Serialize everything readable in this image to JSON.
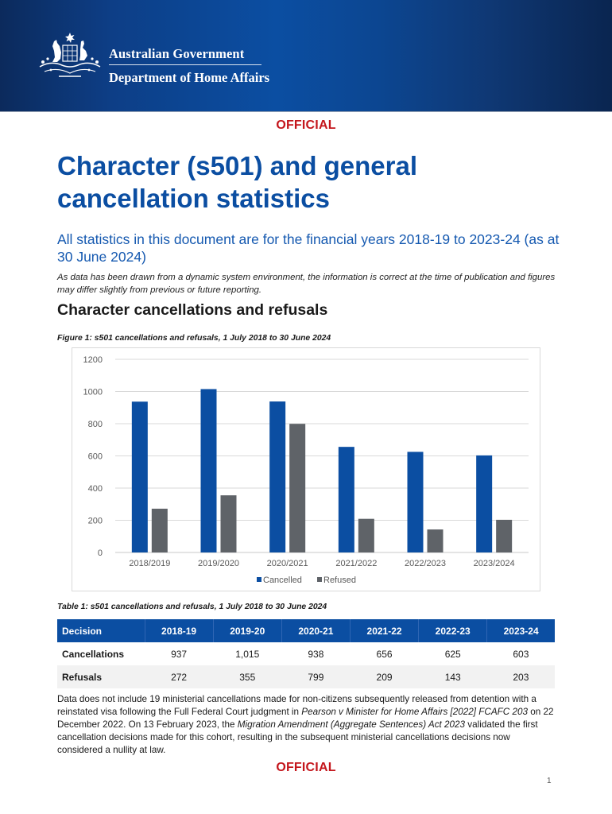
{
  "header": {
    "org_line1": "Australian Government",
    "org_line2": "Department of Home Affairs",
    "crest_icon": "coat-of-arms-icon"
  },
  "classification": {
    "top": "OFFICIAL",
    "bottom": "OFFICIAL",
    "color": "#c4161c"
  },
  "document": {
    "title": "Character (s501) and general cancellation statistics",
    "subtitle": "All statistics in this document are for the financial years 2018-19 to 2023-24 (as at 30 June 2024)",
    "disclaimer": "As data has been drawn from a dynamic system environment, the information is correct at the time of publication and figures may differ slightly from previous or future reporting.",
    "section_heading": "Character cancellations and refusals",
    "figure_caption": "Figure 1: s501 cancellations and refusals, 1 July 2018 to 30 June 2024",
    "table_caption": "Table 1: s501 cancellations and refusals, 1 July 2018 to 30 June 2024",
    "page_number": "1"
  },
  "colors": {
    "brand_blue": "#0b4ea2",
    "refused_grey": "#5f6368",
    "gridline": "#d9d9d9"
  },
  "chart_data": {
    "type": "bar",
    "title": "",
    "xlabel": "",
    "ylabel": "",
    "categories": [
      "2018/2019",
      "2019/2020",
      "2020/2021",
      "2021/2022",
      "2022/2023",
      "2023/2024"
    ],
    "series": [
      {
        "name": "Cancelled",
        "color": "#0b4ea2",
        "values": [
          937,
          1015,
          938,
          656,
          625,
          603
        ]
      },
      {
        "name": "Refused",
        "color": "#5f6368",
        "values": [
          272,
          355,
          799,
          209,
          143,
          203
        ]
      }
    ],
    "ylim": [
      0,
      1200
    ],
    "yticks": [
      0,
      200,
      400,
      600,
      800,
      1000,
      1200
    ],
    "ytick_labels": [
      "0",
      "200",
      "400",
      "600",
      "800",
      "1000",
      "1200"
    ],
    "grid": true,
    "legend_position": "bottom"
  },
  "table": {
    "headers": [
      "Decision",
      "2018-19",
      "2019-20",
      "2020-21",
      "2021-22",
      "2022-23",
      "2023-24"
    ],
    "rows": [
      {
        "label": "Cancellations",
        "values": [
          "937",
          "1,015",
          "938",
          "656",
          "625",
          "603"
        ]
      },
      {
        "label": "Refusals",
        "values": [
          "272",
          "355",
          "799",
          "209",
          "143",
          "203"
        ]
      }
    ]
  },
  "note": {
    "part1": "Data does not include 19 ministerial cancellations made for non-citizens subsequently released from detention with a reinstated visa following the Full Federal Court judgment in ",
    "case_name": "Pearson v Minister for Home Affairs [2022] FCAFC 203",
    "part2": " on 22 December 2022. On 13 February 2023, the ",
    "act_name": "Migration Amendment (Aggregate Sentences) Act 2023",
    "part3": " validated the first cancellation decisions made for this cohort, resulting in the subsequent ministerial cancellations decisions now considered a nullity at law."
  }
}
